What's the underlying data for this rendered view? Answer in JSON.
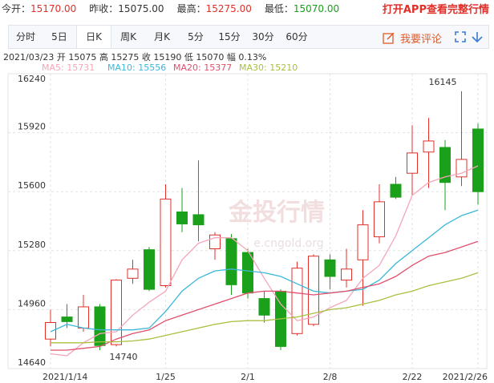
{
  "header": {
    "stats": [
      {
        "label": "今开：",
        "value": "15170.00",
        "color": "#e0302a"
      },
      {
        "label": "昨收：",
        "value": "15075.00",
        "color": "#333333"
      },
      {
        "label": "最高：",
        "value": "15275.00",
        "color": "#e0302a"
      },
      {
        "label": "最低：",
        "value": "15070.00",
        "color": "#1aa01a"
      }
    ],
    "app_link": "打开APP查看完整行情",
    "tabs": [
      "分时",
      "5日",
      "日K",
      "周K",
      "月K",
      "5分",
      "15分",
      "30分",
      "60分"
    ],
    "selected_tab": 2,
    "comment": "我要评论"
  },
  "chart_data": {
    "type": "candlestick",
    "subtitle": "2021/03/23  开 15075  高 15275  收 15190  低 15070  幅 0.13%",
    "watermark": [
      "金投行情",
      "e.cngold.org"
    ],
    "categories": [
      "2021/1/14",
      null,
      null,
      null,
      null,
      null,
      null,
      "1/25",
      null,
      null,
      null,
      null,
      "2/1",
      null,
      null,
      null,
      null,
      "2/8",
      null,
      null,
      null,
      null,
      "2/22",
      null,
      null,
      null,
      "2021/2/26"
    ],
    "open": [
      14800,
      14920,
      14860,
      14975,
      14770,
      15130,
      15285,
      15090,
      15490,
      15475,
      15290,
      15345,
      15270,
      15020,
      15060,
      14830,
      14880,
      15230,
      15120,
      15230,
      15355,
      15640,
      15700,
      15815,
      15840,
      15680,
      15940
    ],
    "high": [
      14960,
      14990,
      15040,
      14990,
      15125,
      15230,
      15300,
      15640,
      15620,
      15770,
      15380,
      15370,
      15290,
      15060,
      15070,
      15220,
      15260,
      15260,
      15290,
      15500,
      15640,
      15680,
      15960,
      16000,
      15880,
      16145,
      15970
    ],
    "low": [
      14760,
      14860,
      14840,
      14740,
      14760,
      15100,
      15060,
      15080,
      15380,
      15330,
      15230,
      15040,
      15020,
      14890,
      14740,
      14820,
      14870,
      15070,
      15080,
      14980,
      15320,
      15560,
      15580,
      15620,
      15500,
      15630,
      15530
    ],
    "close": [
      14890,
      14895,
      14975,
      14765,
      15120,
      15180,
      15070,
      15560,
      15425,
      15420,
      15365,
      15095,
      15050,
      14930,
      14760,
      15185,
      15250,
      15140,
      15180,
      15420,
      15545,
      15570,
      15810,
      15875,
      15650,
      15775,
      15600
    ],
    "up_color": "#e0302a",
    "down_color": "#1aa01a",
    "series": [
      {
        "name": "MA5: 15731",
        "color": "#f4a6b8",
        "values": [
          14720,
          14710,
          14780,
          14830,
          14840,
          14930,
          15000,
          15060,
          15230,
          15320,
          15350,
          15350,
          15280,
          15130,
          14990,
          14900,
          14920,
          14970,
          15010,
          15130,
          15200,
          15360,
          15580,
          15650,
          15680,
          15700,
          15740
        ]
      },
      {
        "name": "MA10: 15556",
        "color": "#3ab8d8",
        "values": [
          14840,
          14880,
          14860,
          14850,
          14850,
          14850,
          14860,
          14950,
          15060,
          15130,
          15170,
          15180,
          15170,
          15160,
          15140,
          15100,
          15060,
          15050,
          15060,
          15070,
          15120,
          15210,
          15280,
          15350,
          15420,
          15470,
          15500
        ]
      },
      {
        "name": "MA20: 15377",
        "color": "#e0506e",
        "values": [
          14740,
          14740,
          14750,
          14760,
          14800,
          14830,
          14850,
          14900,
          14930,
          14960,
          14990,
          15020,
          15050,
          15060,
          15060,
          15050,
          15040,
          15050,
          15060,
          15080,
          15100,
          15140,
          15200,
          15250,
          15270,
          15300,
          15330
        ]
      },
      {
        "name": "MA30: 15210",
        "color": "#a8c040",
        "values": [
          14780,
          14780,
          14780,
          14785,
          14785,
          14790,
          14800,
          14820,
          14840,
          14860,
          14880,
          14895,
          14900,
          14900,
          14910,
          14920,
          14940,
          14960,
          14970,
          14990,
          15010,
          15040,
          15060,
          15090,
          15110,
          15130,
          15160
        ]
      }
    ],
    "ylim": [
      14640,
      16240
    ],
    "yticks": [
      14640,
      14960,
      15280,
      15600,
      15920,
      16240
    ],
    "grid": true
  }
}
